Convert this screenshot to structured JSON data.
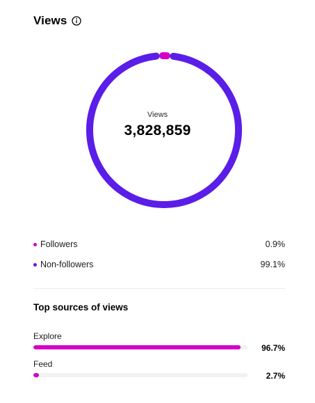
{
  "header": {
    "title": "Views",
    "info_icon": "info-circle-icon"
  },
  "donut": {
    "center_label": "Views",
    "center_value": "3,828,859",
    "colors": {
      "followers": "#d400c8",
      "non_followers": "#5a1ee8"
    }
  },
  "legend": [
    {
      "label": "Followers",
      "percent": "0.9%",
      "color": "#d400c8"
    },
    {
      "label": "Non-followers",
      "percent": "99.1%",
      "color": "#5a1ee8"
    }
  ],
  "top_sources": {
    "title": "Top sources of views",
    "items": [
      {
        "label": "Explore",
        "percent": "96.7%",
        "value": 96.7
      },
      {
        "label": "Feed",
        "percent": "2.7%",
        "value": 2.7
      }
    ],
    "bar_color": "#d400c8",
    "track_color": "#f2f2f2"
  }
}
